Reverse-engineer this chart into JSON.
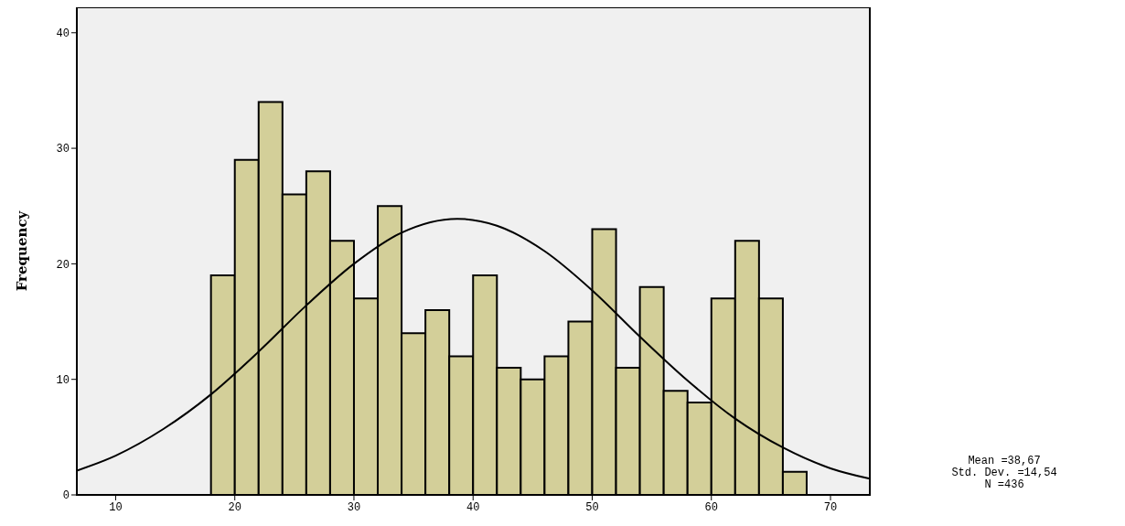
{
  "chart_data": {
    "type": "histogram",
    "ylabel": "Frequency",
    "bins": [
      18,
      20,
      22,
      24,
      26,
      28,
      30,
      32,
      34,
      36,
      38,
      40,
      42,
      44,
      46,
      48,
      50,
      52,
      54,
      56,
      58,
      60,
      62,
      64,
      66,
      68
    ],
    "values": [
      19,
      29,
      34,
      26,
      28,
      22,
      17,
      25,
      14,
      16,
      12,
      19,
      11,
      10,
      12,
      15,
      23,
      11,
      18,
      9,
      8,
      17,
      22,
      17,
      2
    ],
    "color": "#d3cf99",
    "series": [
      {
        "type": "line",
        "color": "#000000",
        "marker": "none",
        "x": [
          6.74,
          10,
          14,
          18,
          22,
          26,
          30,
          34,
          38.67,
          42,
          46,
          50,
          54,
          58,
          62,
          66,
          70,
          73.3
        ],
        "values": [
          2.1,
          3.4,
          5.7,
          8.7,
          12.4,
          16.4,
          20.0,
          22.7,
          23.9,
          23.3,
          21.1,
          17.7,
          13.7,
          9.9,
          6.6,
          4.1,
          2.3,
          1.4
        ]
      }
    ],
    "xlim": [
      6.74,
      73.3
    ],
    "xticks": [
      10,
      20,
      30,
      40,
      50,
      60,
      70
    ],
    "ylim": [
      0,
      42.2
    ],
    "yticks": [
      0,
      10,
      20,
      30,
      40
    ],
    "annotations": [
      "Mean =38,67",
      "Std. Dev. =14,54",
      "N =436"
    ]
  }
}
